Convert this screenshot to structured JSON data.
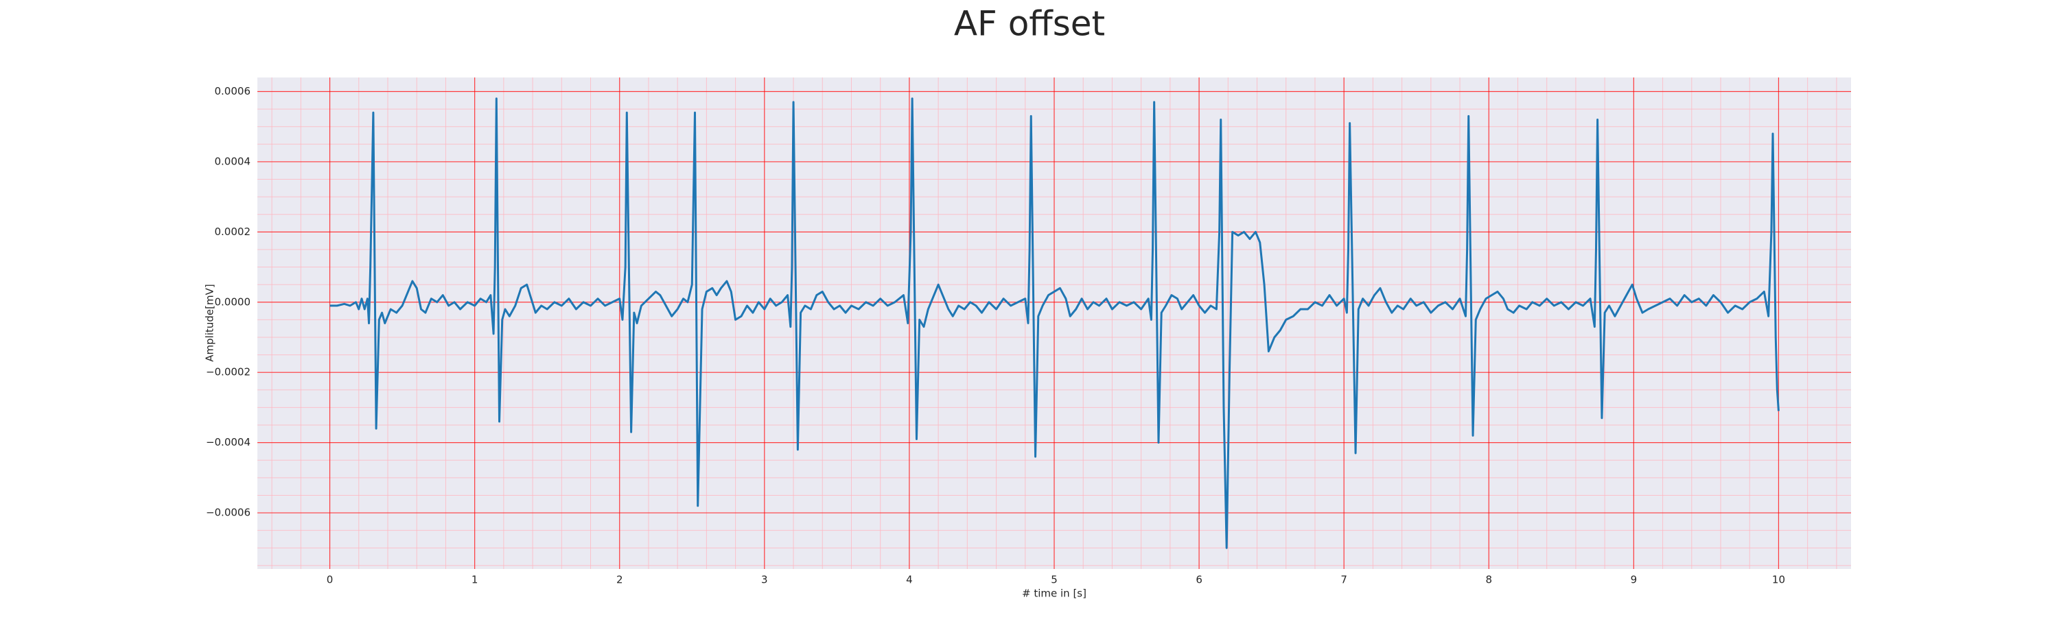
{
  "chart_data": {
    "type": "line",
    "title": "AF offset",
    "xlabel": "# time in [s]",
    "ylabel": "Amplitude[mV]",
    "color": "#1f77b4",
    "grid": true,
    "minor_grid": true,
    "xlim": [
      -0.5,
      10.5
    ],
    "ylim": [
      -0.00076,
      0.00064
    ],
    "xticks": [
      0,
      1,
      2,
      3,
      4,
      5,
      6,
      7,
      8,
      9,
      10
    ],
    "yticks": [
      {
        "value": -0.0006,
        "label": "−0.0006"
      },
      {
        "value": -0.0004,
        "label": "−0.0004"
      },
      {
        "value": -0.0002,
        "label": "−0.0002"
      },
      {
        "value": 0,
        "label": "0.0000"
      },
      {
        "value": 0.0002,
        "label": "0.0002"
      },
      {
        "value": 0.0004,
        "label": "0.0004"
      },
      {
        "value": 0.0006,
        "label": "0.0006"
      }
    ],
    "x": [
      0,
      0.05,
      0.1,
      0.14,
      0.18,
      0.2,
      0.22,
      0.24,
      0.26,
      0.27,
      0.28,
      0.3,
      0.32,
      0.34,
      0.36,
      0.38,
      0.42,
      0.46,
      0.5,
      0.54,
      0.57,
      0.6,
      0.63,
      0.66,
      0.7,
      0.74,
      0.78,
      0.82,
      0.86,
      0.9,
      0.95,
      1.0,
      1.04,
      1.08,
      1.11,
      1.13,
      1.14,
      1.15,
      1.17,
      1.19,
      1.21,
      1.24,
      1.28,
      1.32,
      1.36,
      1.39,
      1.42,
      1.46,
      1.5,
      1.55,
      1.6,
      1.65,
      1.7,
      1.75,
      1.8,
      1.85,
      1.9,
      1.95,
      2.0,
      2.02,
      2.04,
      2.05,
      2.08,
      2.1,
      2.12,
      2.15,
      2.2,
      2.25,
      2.28,
      2.32,
      2.36,
      2.4,
      2.44,
      2.47,
      2.5,
      2.52,
      2.54,
      2.57,
      2.6,
      2.64,
      2.67,
      2.7,
      2.74,
      2.77,
      2.8,
      2.84,
      2.88,
      2.92,
      2.96,
      3.0,
      3.04,
      3.08,
      3.12,
      3.16,
      3.18,
      3.19,
      3.2,
      3.23,
      3.25,
      3.28,
      3.32,
      3.36,
      3.4,
      3.44,
      3.48,
      3.52,
      3.56,
      3.6,
      3.65,
      3.7,
      3.75,
      3.8,
      3.85,
      3.9,
      3.96,
      3.99,
      4.01,
      4.02,
      4.05,
      4.07,
      4.1,
      4.13,
      4.17,
      4.2,
      4.23,
      4.27,
      4.3,
      4.34,
      4.38,
      4.42,
      4.46,
      4.5,
      4.55,
      4.6,
      4.65,
      4.7,
      4.75,
      4.8,
      4.82,
      4.83,
      4.84,
      4.87,
      4.89,
      4.92,
      4.96,
      5.0,
      5.04,
      5.08,
      5.11,
      5.15,
      5.19,
      5.23,
      5.27,
      5.31,
      5.36,
      5.4,
      5.45,
      5.5,
      5.55,
      5.6,
      5.65,
      5.67,
      5.68,
      5.69,
      5.72,
      5.74,
      5.77,
      5.81,
      5.85,
      5.88,
      5.92,
      5.96,
      6.0,
      6.04,
      6.08,
      6.12,
      6.14,
      6.15,
      6.17,
      6.19,
      6.21,
      6.23,
      6.27,
      6.31,
      6.35,
      6.39,
      6.42,
      6.45,
      6.48,
      6.52,
      6.56,
      6.6,
      6.65,
      6.7,
      6.75,
      6.8,
      6.85,
      6.9,
      6.95,
      7.0,
      7.02,
      7.03,
      7.04,
      7.08,
      7.1,
      7.13,
      7.17,
      7.21,
      7.25,
      7.29,
      7.33,
      7.37,
      7.41,
      7.46,
      7.5,
      7.55,
      7.6,
      7.65,
      7.7,
      7.75,
      7.8,
      7.84,
      7.85,
      7.86,
      7.89,
      7.91,
      7.94,
      7.98,
      8.02,
      8.06,
      8.1,
      8.13,
      8.17,
      8.21,
      8.26,
      8.3,
      8.35,
      8.4,
      8.45,
      8.5,
      8.55,
      8.6,
      8.65,
      8.7,
      8.73,
      8.74,
      8.75,
      8.78,
      8.8,
      8.83,
      8.87,
      8.91,
      8.95,
      8.99,
      9.02,
      9.06,
      9.1,
      9.15,
      9.2,
      9.25,
      9.3,
      9.35,
      9.4,
      9.45,
      9.5,
      9.55,
      9.6,
      9.65,
      9.7,
      9.75,
      9.8,
      9.85,
      9.9,
      9.93,
      9.95,
      9.96,
      9.98,
      9.99,
      10.0
    ],
    "values": [
      -1e-05,
      -1e-05,
      -5e-06,
      -1e-05,
      0,
      -2e-05,
      1e-05,
      -2e-05,
      1e-05,
      -6e-05,
      0.0001,
      0.00054,
      -0.00036,
      -5e-05,
      -3e-05,
      -6e-05,
      -2e-05,
      -3e-05,
      -1e-05,
      3e-05,
      6e-05,
      4e-05,
      -2e-05,
      -3e-05,
      1e-05,
      0,
      2e-05,
      -1e-05,
      0,
      -2e-05,
      0,
      -1e-05,
      1e-05,
      0,
      2e-05,
      -9e-05,
      0.0001,
      0.00058,
      -0.00034,
      -5e-05,
      -2e-05,
      -4e-05,
      -1e-05,
      4e-05,
      5e-05,
      1e-05,
      -3e-05,
      -1e-05,
      -2e-05,
      0,
      -1e-05,
      1e-05,
      -2e-05,
      0,
      -1e-05,
      1e-05,
      -1e-05,
      0,
      1e-05,
      -5e-05,
      0.0001,
      0.00054,
      -0.00037,
      -3e-05,
      -6e-05,
      -1e-05,
      1e-05,
      3e-05,
      2e-05,
      -1e-05,
      -4e-05,
      -2e-05,
      1e-05,
      0,
      5e-05,
      0.00054,
      -0.00058,
      -2e-05,
      3e-05,
      4e-05,
      2e-05,
      4e-05,
      6e-05,
      3e-05,
      -5e-05,
      -4e-05,
      -1e-05,
      -3e-05,
      0,
      -2e-05,
      1e-05,
      -1e-05,
      0,
      2e-05,
      -7e-05,
      0.0001,
      0.00057,
      -0.00042,
      -3e-05,
      -1e-05,
      -2e-05,
      2e-05,
      3e-05,
      0,
      -2e-05,
      -1e-05,
      -3e-05,
      -1e-05,
      -2e-05,
      0,
      -1e-05,
      1e-05,
      -1e-05,
      0,
      2e-05,
      -6e-05,
      0.0002,
      0.00058,
      -0.00039,
      -5e-05,
      -7e-05,
      -2e-05,
      2e-05,
      5e-05,
      2e-05,
      -2e-05,
      -4e-05,
      -1e-05,
      -2e-05,
      0,
      -1e-05,
      -3e-05,
      0,
      -2e-05,
      1e-05,
      -1e-05,
      0,
      1e-05,
      -6e-05,
      0.00015,
      0.00053,
      -0.00044,
      -4e-05,
      -1e-05,
      2e-05,
      3e-05,
      4e-05,
      1e-05,
      -4e-05,
      -2e-05,
      1e-05,
      -2e-05,
      0,
      -1e-05,
      1e-05,
      -2e-05,
      0,
      -1e-05,
      0,
      -2e-05,
      1e-05,
      -5e-05,
      0.00015,
      0.00057,
      -0.0004,
      -3e-05,
      -1e-05,
      2e-05,
      1e-05,
      -2e-05,
      0,
      2e-05,
      -1e-05,
      -3e-05,
      -1e-05,
      -2e-05,
      0.0002,
      0.00052,
      -0.0003,
      -0.0007,
      -0.0002,
      0.0002,
      0.00019,
      0.0002,
      0.00018,
      0.0002,
      0.00017,
      5e-05,
      -0.00014,
      -0.0001,
      -8e-05,
      -5e-05,
      -4e-05,
      -2e-05,
      -2e-05,
      0,
      -1e-05,
      2e-05,
      -1e-05,
      1e-05,
      -3e-05,
      0.00015,
      0.00051,
      -0.00043,
      -2e-05,
      1e-05,
      -1e-05,
      2e-05,
      4e-05,
      0,
      -3e-05,
      -1e-05,
      -2e-05,
      1e-05,
      -1e-05,
      0,
      -3e-05,
      -1e-05,
      0,
      -2e-05,
      1e-05,
      -4e-05,
      0.00015,
      0.00053,
      -0.00038,
      -5e-05,
      -2e-05,
      1e-05,
      2e-05,
      3e-05,
      1e-05,
      -2e-05,
      -3e-05,
      -1e-05,
      -2e-05,
      0,
      -1e-05,
      1e-05,
      -1e-05,
      0,
      -2e-05,
      0,
      -1e-05,
      1e-05,
      -7e-05,
      0.00015,
      0.00052,
      -0.00033,
      -3e-05,
      -1e-05,
      -4e-05,
      -1e-05,
      2e-05,
      5e-05,
      1e-05,
      -3e-05,
      -2e-05,
      -1e-05,
      0,
      1e-05,
      -1e-05,
      2e-05,
      0,
      1e-05,
      -1e-05,
      2e-05,
      0,
      -3e-05,
      -1e-05,
      -2e-05,
      0,
      1e-05,
      3e-05,
      -4e-05,
      0.0002,
      0.00048,
      -0.0001,
      -0.00025,
      -0.00031
    ]
  }
}
